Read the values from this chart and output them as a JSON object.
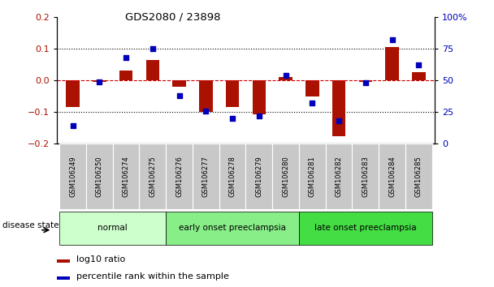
{
  "title": "GDS2080 / 23898",
  "samples": [
    "GSM106249",
    "GSM106250",
    "GSM106274",
    "GSM106275",
    "GSM106276",
    "GSM106277",
    "GSM106278",
    "GSM106279",
    "GSM106280",
    "GSM106281",
    "GSM106282",
    "GSM106283",
    "GSM106284",
    "GSM106285"
  ],
  "log10_ratio": [
    -0.085,
    -0.005,
    0.03,
    0.065,
    -0.02,
    -0.1,
    -0.085,
    -0.108,
    0.01,
    -0.05,
    -0.178,
    -0.005,
    0.105,
    0.025
  ],
  "percentile_rank": [
    14,
    49,
    68,
    75,
    38,
    26,
    20,
    22,
    54,
    32,
    18,
    48,
    82,
    62
  ],
  "groups": [
    {
      "label": "normal",
      "start": 0,
      "end": 4,
      "color": "#ccffcc"
    },
    {
      "label": "early onset preeclampsia",
      "start": 4,
      "end": 9,
      "color": "#88ee88"
    },
    {
      "label": "late onset preeclampsia",
      "start": 9,
      "end": 14,
      "color": "#44dd44"
    }
  ],
  "ylim_left": [
    -0.2,
    0.2
  ],
  "ylim_right": [
    0,
    100
  ],
  "yticks_left": [
    -0.2,
    -0.1,
    0.0,
    0.1,
    0.2
  ],
  "yticks_right": [
    0,
    25,
    50,
    75,
    100
  ],
  "bar_color": "#aa1100",
  "dot_color": "#0000bb",
  "zero_line_color": "#cc0000",
  "dot_line_color": "#000000",
  "bg_color": "#ffffff",
  "plot_bg": "#ffffff",
  "tick_bg": "#c8c8c8",
  "legend_items": [
    "log10 ratio",
    "percentile rank within the sample"
  ],
  "disease_state_label": "disease state"
}
